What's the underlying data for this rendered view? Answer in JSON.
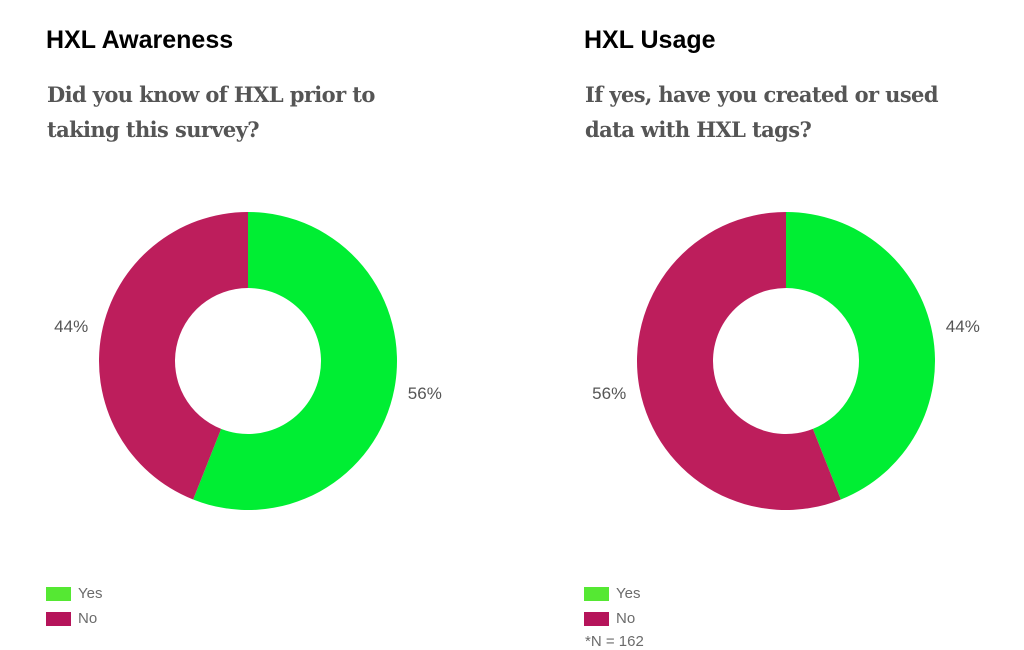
{
  "chart_data": [
    {
      "type": "pie",
      "donut": true,
      "title": "HXL Awareness",
      "subtitle": "Did you know of HXL prior to taking this survey?",
      "categories": [
        "Yes",
        "No"
      ],
      "values": [
        56,
        44
      ],
      "value_labels": [
        "56%",
        "44%"
      ],
      "unit": "%",
      "colors": [
        "#00ee33",
        "#bd1e5c"
      ],
      "legend_colors": [
        "#55e833",
        "#b5145a"
      ],
      "legend_position": "bottom-left"
    },
    {
      "type": "pie",
      "donut": true,
      "title": "HXL Usage",
      "subtitle": "If yes, have you created or used data with HXL tags?",
      "categories": [
        "Yes",
        "No"
      ],
      "values": [
        44,
        56
      ],
      "value_labels": [
        "44%",
        "56%"
      ],
      "unit": "%",
      "colors": [
        "#00ee33",
        "#bd1e5c"
      ],
      "legend_colors": [
        "#55e833",
        "#b5145a"
      ],
      "legend_position": "bottom-left",
      "footnote": "*N = 162"
    }
  ]
}
